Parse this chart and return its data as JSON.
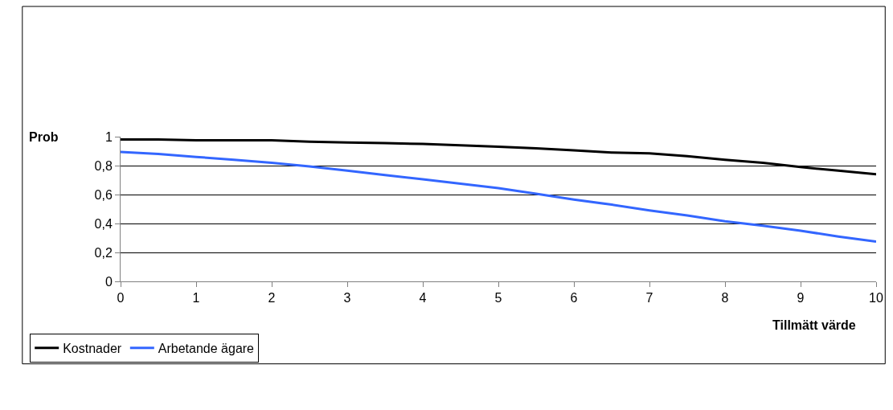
{
  "chart_data": {
    "type": "line",
    "ylabel": "Prob",
    "xlabel": "Tillmätt värde",
    "x": [
      0,
      0.5,
      1,
      1.5,
      2,
      2.5,
      3,
      3.5,
      4,
      4.5,
      5,
      5.5,
      6,
      6.5,
      7,
      7.5,
      8,
      8.5,
      9,
      9.5,
      10
    ],
    "series": [
      {
        "name": "Kostnader",
        "color": "#000000",
        "values": [
          0.98,
          0.98,
          0.975,
          0.975,
          0.975,
          0.965,
          0.96,
          0.955,
          0.95,
          0.94,
          0.93,
          0.92,
          0.905,
          0.89,
          0.885,
          0.865,
          0.84,
          0.82,
          0.79,
          0.765,
          0.74
        ]
      },
      {
        "name": "Arbetande ägare",
        "color": "#3366ff",
        "values": [
          0.895,
          0.88,
          0.86,
          0.84,
          0.82,
          0.795,
          0.765,
          0.735,
          0.705,
          0.675,
          0.645,
          0.605,
          0.565,
          0.53,
          0.49,
          0.455,
          0.415,
          0.385,
          0.35,
          0.31,
          0.275
        ]
      }
    ],
    "xlim": [
      0,
      10
    ],
    "xticks": [
      0,
      1,
      2,
      3,
      4,
      5,
      6,
      7,
      8,
      9,
      10
    ],
    "ylim": [
      0,
      1
    ],
    "yticks": [
      0,
      {
        "value": 0.2,
        "label": "0,2"
      },
      {
        "value": 0.4,
        "label": "0,4"
      },
      {
        "value": 0.6,
        "label": "0,6"
      },
      {
        "value": 0.8,
        "label": "0,8"
      },
      1
    ],
    "grid": "y",
    "legend": "bottom left",
    "marker": "none",
    "line_style": "solid"
  }
}
